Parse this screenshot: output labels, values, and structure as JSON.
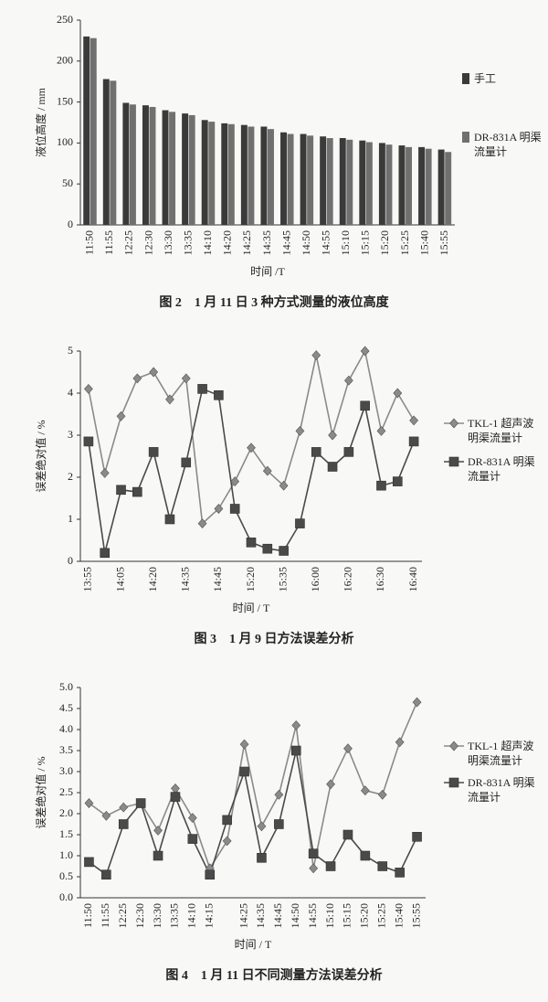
{
  "chart_data": [
    {
      "type": "bar",
      "caption": "图 2　1 月 11 日 3 种方式测量的液位高度",
      "xlabel": "时间 /T",
      "ylabel": "液位高度 / mm",
      "legend": "right",
      "categories": [
        "11:50",
        "11:55",
        "12:25",
        "12:30",
        "13:30",
        "13:35",
        "14:10",
        "14:20",
        "14:25",
        "14:35",
        "14:45",
        "14:50",
        "14:55",
        "15:10",
        "15:15",
        "15:20",
        "15:25",
        "15:40",
        "15:55"
      ],
      "series": [
        {
          "name": "手工",
          "color": "#3a3a3a",
          "values": [
            230,
            178,
            149,
            146,
            140,
            136,
            128,
            124,
            122,
            120,
            113,
            111,
            108,
            106,
            103,
            100,
            97,
            95,
            92
          ]
        },
        {
          "name": "DR-831A 明渠流量计",
          "color": "#707070",
          "values": [
            228,
            176,
            147,
            144,
            138,
            134,
            126,
            123,
            120,
            117,
            111,
            109,
            106,
            104,
            101,
            98,
            95,
            93,
            89
          ]
        }
      ],
      "ylim": [
        0,
        250
      ],
      "yticks": [
        0,
        50,
        100,
        150,
        200,
        250
      ]
    },
    {
      "type": "line",
      "caption": "图 3　1 月 9 日方法误差分析",
      "xlabel": "时间 / T",
      "ylabel": "误差绝对值 / %",
      "legend": "right",
      "categories": [
        "13:55",
        null,
        "14:05",
        null,
        "14:20",
        null,
        "14:35",
        null,
        "14:45",
        null,
        "15:20",
        null,
        "15:35",
        null,
        "16:00",
        null,
        "16:20",
        null,
        "16:30",
        null,
        "16:40"
      ],
      "series": [
        {
          "name": "TKL-1 超声波明渠流量计",
          "color": "#8a8a8a",
          "marker": "diamond",
          "values": [
            4.1,
            2.1,
            3.45,
            4.35,
            4.5,
            3.85,
            4.35,
            0.9,
            1.25,
            1.9,
            2.7,
            2.15,
            1.8,
            3.1,
            4.9,
            3.0,
            4.3,
            5.0,
            3.1,
            4.0,
            3.35
          ]
        },
        {
          "name": "DR-831A 明渠流量计",
          "color": "#4a4a4a",
          "marker": "square",
          "values": [
            2.85,
            0.2,
            1.7,
            1.65,
            2.6,
            1.0,
            2.35,
            4.1,
            3.95,
            1.25,
            0.45,
            0.3,
            0.25,
            0.9,
            2.6,
            2.25,
            2.6,
            3.7,
            1.8,
            1.9,
            2.85
          ]
        }
      ],
      "ylim": [
        0,
        5
      ],
      "yticks": [
        0,
        1,
        2,
        3,
        4,
        5
      ]
    },
    {
      "type": "line",
      "caption": "图 4　1 月 11 日不同测量方法误差分析",
      "xlabel": "时间 / T",
      "ylabel": "误差绝对值 / %",
      "legend": "right",
      "categories": [
        "11:50",
        "11:55",
        "12:25",
        "12:30",
        "13:30",
        "13:35",
        "14:10",
        "14:15",
        null,
        "14:25",
        "14:35",
        "14:45",
        "14:50",
        "14:55",
        "15:10",
        "15:15",
        "15:20",
        "15:25",
        "15:40",
        "15:55"
      ],
      "series": [
        {
          "name": "TKL-1 超声波明渠流量计",
          "color": "#8a8a8a",
          "marker": "diamond",
          "values": [
            2.25,
            1.95,
            2.15,
            2.25,
            1.6,
            2.6,
            1.9,
            0.7,
            1.35,
            3.65,
            1.7,
            2.45,
            4.1,
            0.7,
            2.7,
            3.55,
            2.55,
            2.45,
            3.7,
            4.65
          ]
        },
        {
          "name": "DR-831A 明渠流量计",
          "color": "#4a4a4a",
          "marker": "square",
          "values": [
            0.85,
            0.55,
            1.75,
            2.25,
            1.0,
            2.4,
            1.4,
            0.55,
            1.85,
            3.0,
            0.95,
            1.75,
            3.5,
            1.05,
            0.75,
            1.5,
            1.0,
            0.75,
            0.6,
            1.45
          ]
        }
      ],
      "ylim": [
        0,
        5
      ],
      "yticks": [
        {
          "value": 0,
          "label": "0.0"
        },
        0.5,
        {
          "value": 1,
          "label": "1.0"
        },
        1.5,
        {
          "value": 2,
          "label": "2.0"
        },
        2.5,
        {
          "value": 3,
          "label": "3.0"
        },
        3.5,
        {
          "value": 4,
          "label": "4.0"
        },
        4.5,
        {
          "value": 5,
          "label": "5.0"
        }
      ]
    }
  ]
}
